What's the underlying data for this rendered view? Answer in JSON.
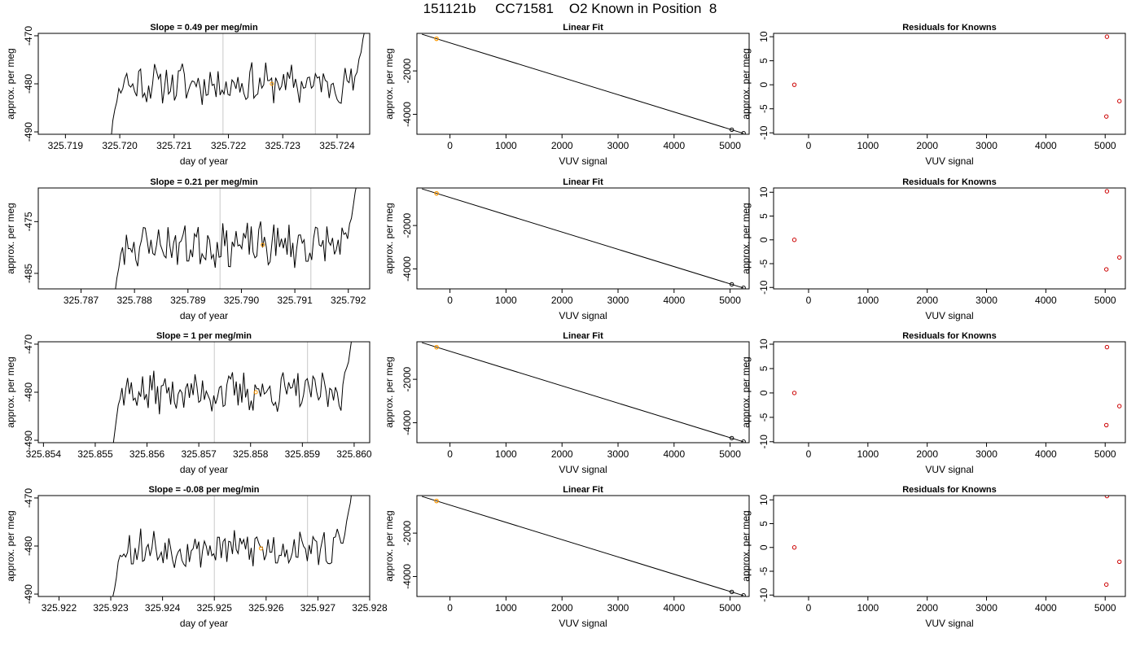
{
  "figure": {
    "title": "151121b     CC71581    O2 Known in Position  8"
  },
  "chart_data": [
    {
      "type": "line",
      "row": 1,
      "panel": "time-series",
      "title": "Slope =  0.49  per meg/min",
      "xlabel": "day of year",
      "ylabel": "approx. per meg",
      "xlim": [
        325.7185,
        325.7246
      ],
      "ylim": [
        -490.5,
        -469.5
      ],
      "xticks": [
        325.719,
        325.72,
        325.721,
        325.722,
        325.723,
        325.724
      ],
      "xtick_labels": [
        "325.719",
        "325.720",
        "325.721",
        "325.722",
        "325.723",
        "325.724"
      ],
      "yticks": [
        -490,
        -480,
        -470
      ],
      "ytick_labels": [
        "-490",
        "-480",
        "-470"
      ],
      "vlines": [
        325.7219,
        325.7236
      ],
      "series_start": 325.7198,
      "series_end": 325.72455,
      "series_mean": -480,
      "mean_point": [
        325.7228,
        -480
      ],
      "trace_seed": 11
    },
    {
      "type": "line",
      "row": 1,
      "panel": "linear-fit",
      "title": "Linear Fit",
      "xlabel": "VUV signal",
      "ylabel": "approx. per meg",
      "xlim": [
        -590,
        5340
      ],
      "ylim": [
        -4920,
        -270
      ],
      "xticks": [
        0,
        1000,
        2000,
        3000,
        4000,
        5000
      ],
      "xtick_labels": [
        "0",
        "1000",
        "2000",
        "3000",
        "4000",
        "5000"
      ],
      "yticks": [
        -4000,
        -2000
      ],
      "ytick_labels": [
        "-4000",
        "-2000"
      ],
      "fit_line": [
        [
          -500,
          -310
        ],
        [
          5240,
          -4880
        ]
      ],
      "known_points": [
        [
          5030,
          -4710
        ],
        [
          5240,
          -4870
        ]
      ],
      "unknown_point": [
        -240,
        -520
      ]
    },
    {
      "type": "scatter",
      "row": 1,
      "panel": "residuals",
      "title": "Residuals for Knowns",
      "xlabel": "VUV signal",
      "ylabel": "approx. per meg",
      "xlim": [
        -590,
        5340
      ],
      "ylim": [
        -10.3,
        10.7
      ],
      "xticks": [
        0,
        1000,
        2000,
        3000,
        4000,
        5000
      ],
      "xtick_labels": [
        "0",
        "1000",
        "2000",
        "3000",
        "4000",
        "5000"
      ],
      "yticks": [
        -10,
        -5,
        0,
        5,
        10
      ],
      "ytick_labels": [
        "-10",
        "-5",
        "0",
        "5",
        "10"
      ],
      "points": [
        [
          -240,
          0
        ],
        [
          5030,
          10
        ],
        [
          5020,
          -6.6
        ],
        [
          5240,
          -3.4
        ]
      ]
    },
    {
      "type": "line",
      "row": 2,
      "panel": "time-series",
      "title": "Slope =  0.21  per meg/min",
      "xlabel": "day of year",
      "ylabel": "approx. per meg",
      "xlim": [
        325.7862,
        325.7924
      ],
      "ylim": [
        -488,
        -468.5
      ],
      "xticks": [
        325.787,
        325.788,
        325.789,
        325.79,
        325.791,
        325.792
      ],
      "xtick_labels": [
        "325.787",
        "325.788",
        "325.789",
        "325.790",
        "325.791",
        "325.792"
      ],
      "yticks": [
        -485,
        -475
      ],
      "ytick_labels": [
        "-485",
        "-475"
      ],
      "vlines": [
        325.7896,
        325.7913
      ],
      "series_start": 325.7876,
      "series_end": 325.7922,
      "series_mean": -479.5,
      "mean_point": [
        325.7904,
        -479.5
      ],
      "trace_seed": 23
    },
    {
      "type": "line",
      "row": 2,
      "panel": "linear-fit",
      "title": "Linear Fit",
      "xlabel": "VUV signal",
      "ylabel": "approx. per meg",
      "xlim": [
        -590,
        5340
      ],
      "ylim": [
        -4920,
        -270
      ],
      "xticks": [
        0,
        1000,
        2000,
        3000,
        4000,
        5000
      ],
      "xtick_labels": [
        "0",
        "1000",
        "2000",
        "3000",
        "4000",
        "5000"
      ],
      "yticks": [
        -4000,
        -2000
      ],
      "ytick_labels": [
        "-4000",
        "-2000"
      ],
      "fit_line": [
        [
          -500,
          -310
        ],
        [
          5240,
          -4880
        ]
      ],
      "known_points": [
        [
          5030,
          -4710
        ],
        [
          5240,
          -4870
        ]
      ],
      "unknown_point": [
        -240,
        -520
      ]
    },
    {
      "type": "scatter",
      "row": 2,
      "panel": "residuals",
      "title": "Residuals for Knowns",
      "xlabel": "VUV signal",
      "ylabel": "approx. per meg",
      "xlim": [
        -590,
        5340
      ],
      "ylim": [
        -10.3,
        10.9
      ],
      "xticks": [
        0,
        1000,
        2000,
        3000,
        4000,
        5000
      ],
      "xtick_labels": [
        "0",
        "1000",
        "2000",
        "3000",
        "4000",
        "5000"
      ],
      "yticks": [
        -10,
        -5,
        0,
        5,
        10
      ],
      "ytick_labels": [
        "-10",
        "-5",
        "0",
        "5",
        "10"
      ],
      "points": [
        [
          -240,
          0
        ],
        [
          5030,
          10.2
        ],
        [
          5020,
          -6.2
        ],
        [
          5240,
          -3.7
        ]
      ]
    },
    {
      "type": "line",
      "row": 3,
      "panel": "time-series",
      "title": "Slope =  1  per meg/min",
      "xlabel": "day of year",
      "ylabel": "approx. per meg",
      "xlim": [
        325.8539,
        325.8603
      ],
      "ylim": [
        -490.5,
        -469.5
      ],
      "xticks": [
        325.854,
        325.855,
        325.856,
        325.857,
        325.858,
        325.859,
        325.86
      ],
      "xtick_labels": [
        "325.854",
        "325.855",
        "325.856",
        "325.857",
        "325.858",
        "325.859",
        "325.860"
      ],
      "yticks": [
        -490,
        -480,
        -470
      ],
      "ytick_labels": [
        "-490",
        "-480",
        "-470"
      ],
      "vlines": [
        325.8573,
        325.8591
      ],
      "series_start": 325.8553,
      "series_end": 325.86,
      "series_mean": -480,
      "mean_point": [
        325.8581,
        -480
      ],
      "trace_seed": 37
    },
    {
      "type": "line",
      "row": 3,
      "panel": "linear-fit",
      "title": "Linear Fit",
      "xlabel": "VUV signal",
      "ylabel": "approx. per meg",
      "xlim": [
        -590,
        5340
      ],
      "ylim": [
        -4920,
        -270
      ],
      "xticks": [
        0,
        1000,
        2000,
        3000,
        4000,
        5000
      ],
      "xtick_labels": [
        "0",
        "1000",
        "2000",
        "3000",
        "4000",
        "5000"
      ],
      "yticks": [
        -4000,
        -2000
      ],
      "ytick_labels": [
        "-4000",
        "-2000"
      ],
      "fit_line": [
        [
          -500,
          -310
        ],
        [
          5240,
          -4880
        ]
      ],
      "known_points": [
        [
          5030,
          -4710
        ],
        [
          5240,
          -4870
        ]
      ],
      "unknown_point": [
        -240,
        -520
      ]
    },
    {
      "type": "scatter",
      "row": 3,
      "panel": "residuals",
      "title": "Residuals for Knowns",
      "xlabel": "VUV signal",
      "ylabel": "approx. per meg",
      "xlim": [
        -590,
        5340
      ],
      "ylim": [
        -10.2,
        10.5
      ],
      "xticks": [
        0,
        1000,
        2000,
        3000,
        4000,
        5000
      ],
      "xtick_labels": [
        "0",
        "1000",
        "2000",
        "3000",
        "4000",
        "5000"
      ],
      "yticks": [
        -10,
        -5,
        0,
        5,
        10
      ],
      "ytick_labels": [
        "-10",
        "-5",
        "0",
        "5",
        "10"
      ],
      "points": [
        [
          -240,
          0
        ],
        [
          5030,
          9.4
        ],
        [
          5020,
          -6.6
        ],
        [
          5240,
          -2.7
        ]
      ]
    },
    {
      "type": "line",
      "row": 4,
      "panel": "time-series",
      "title": "Slope =  -0.08  per meg/min",
      "xlabel": "day of year",
      "ylabel": "approx. per meg",
      "xlim": [
        325.9216,
        325.928
      ],
      "ylim": [
        -490.5,
        -469.5
      ],
      "xticks": [
        325.922,
        325.923,
        325.924,
        325.925,
        325.926,
        325.927,
        325.928
      ],
      "xtick_labels": [
        "325.922",
        "325.923",
        "325.924",
        "325.925",
        "325.926",
        "325.927",
        "325.928"
      ],
      "yticks": [
        -490,
        -480,
        -470
      ],
      "ytick_labels": [
        "-490",
        "-480",
        "-470"
      ],
      "vlines": [
        325.925,
        325.9268
      ],
      "series_start": 325.923,
      "series_end": 325.9277,
      "series_mean": -480.5,
      "mean_point": [
        325.9259,
        -480.5
      ],
      "trace_seed": 53
    },
    {
      "type": "line",
      "row": 4,
      "panel": "linear-fit",
      "title": "Linear Fit",
      "xlabel": "VUV signal",
      "ylabel": "approx. per meg",
      "xlim": [
        -590,
        5340
      ],
      "ylim": [
        -4920,
        -270
      ],
      "xticks": [
        0,
        1000,
        2000,
        3000,
        4000,
        5000
      ],
      "xtick_labels": [
        "0",
        "1000",
        "2000",
        "3000",
        "4000",
        "5000"
      ],
      "yticks": [
        -4000,
        -2000
      ],
      "ytick_labels": [
        "-4000",
        "-2000"
      ],
      "fit_line": [
        [
          -500,
          -310
        ],
        [
          5240,
          -4880
        ]
      ],
      "known_points": [
        [
          5030,
          -4710
        ],
        [
          5240,
          -4870
        ]
      ],
      "unknown_point": [
        -240,
        -520
      ]
    },
    {
      "type": "scatter",
      "row": 4,
      "panel": "residuals",
      "title": "Residuals for Knowns",
      "xlabel": "VUV signal",
      "ylabel": "approx. per meg",
      "xlim": [
        -590,
        5340
      ],
      "ylim": [
        -10.3,
        10.9
      ],
      "xticks": [
        0,
        1000,
        2000,
        3000,
        4000,
        5000
      ],
      "xtick_labels": [
        "0",
        "1000",
        "2000",
        "3000",
        "4000",
        "5000"
      ],
      "yticks": [
        -10,
        -5,
        0,
        5,
        10
      ],
      "ytick_labels": [
        "-10",
        "-5",
        "0",
        "5",
        "10"
      ],
      "points": [
        [
          -240,
          0
        ],
        [
          5030,
          10.8
        ],
        [
          5020,
          -7.8
        ],
        [
          5240,
          -3
        ]
      ]
    }
  ],
  "colors": {
    "axis": "#000000",
    "trace": "#000000",
    "vline": "#c8c8c8",
    "fit_line": "#000000",
    "known_point": "#000000",
    "unknown_point": "#ff9900",
    "residual_point": "#cc0000",
    "mean_point": "#ff9900"
  }
}
